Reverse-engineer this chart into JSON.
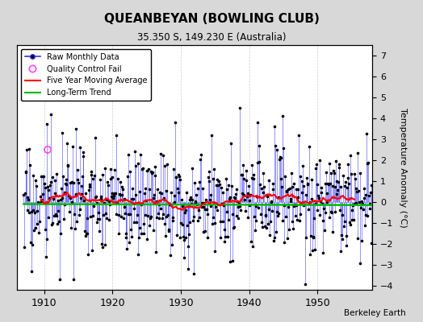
{
  "title": "QUEANBEYAN (BOWLING CLUB)",
  "subtitle": "35.350 S, 149.230 E (Australia)",
  "ylabel": "Temperature Anomaly (°C)",
  "attribution": "Berkeley Earth",
  "xlim": [
    1906,
    1958
  ],
  "ylim": [
    -4.2,
    7.5
  ],
  "yticks": [
    -4,
    -3,
    -2,
    -1,
    0,
    1,
    2,
    3,
    4,
    5,
    6,
    7
  ],
  "xticks": [
    1910,
    1920,
    1930,
    1940,
    1950
  ],
  "year_start": 1907,
  "year_end": 1957,
  "seed": 17,
  "moving_avg_window": 60,
  "background_color": "#d8d8d8",
  "plot_bg_color": "#ffffff",
  "line_color": "#3333ff",
  "dot_color": "#000000",
  "ma_color": "#ff0000",
  "trend_color": "#00bb00",
  "qc_fail_color": "#ff44ff",
  "qc_fail_year": 1910.5,
  "qc_fail_value": 2.5
}
